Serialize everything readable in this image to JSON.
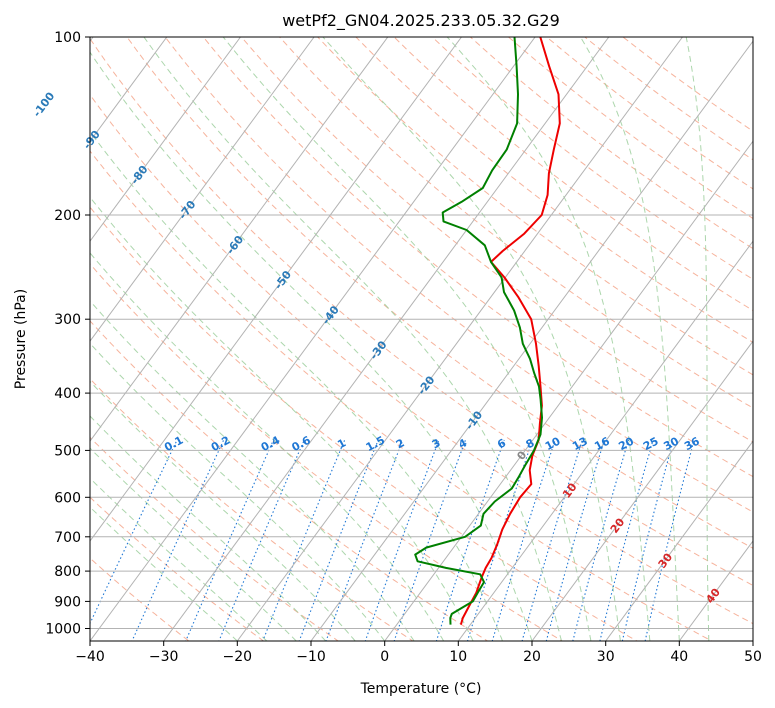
{
  "chart_data": {
    "type": "line",
    "subtype": "skew-t log-p sounding",
    "title": "wetPf2_GN04.2025.233.05.32.G29",
    "xlabel": "Temperature (°C)",
    "ylabel": "Pressure (hPa)",
    "xlim": [
      -40,
      50
    ],
    "ylim": [
      1050,
      100
    ],
    "y_scale": "log",
    "grid": true,
    "x_ticks": [
      "−40",
      "−30",
      "−20",
      "−10",
      "0",
      "10",
      "20",
      "30",
      "40",
      "50"
    ],
    "y_ticks": [
      "100",
      "200",
      "300",
      "400",
      "500",
      "600",
      "700",
      "800",
      "900",
      "1000"
    ],
    "isotherm_labels": [
      "-100",
      "-90",
      "-80",
      "-70",
      "-60",
      "-50",
      "-40",
      "-30",
      "-20",
      "-10",
      "0",
      "10",
      "20",
      "30",
      "40"
    ],
    "mixing_ratio_labels": [
      "0.1",
      "0.2",
      "0.4",
      "0.6",
      "1",
      "1.5",
      "2",
      "3",
      "4",
      "6",
      "8",
      "10",
      "13",
      "16",
      "20",
      "25",
      "30",
      "36"
    ],
    "colors": {
      "temperature": "#ee0000",
      "dewpoint": "#008000",
      "isotherm": "#b3b3b3",
      "dry_adiabat": "#f5a68b",
      "moist_adiabat": "#9ecf9e",
      "mixing_ratio": "#1f77d4",
      "isotherm_label": "#2a7ab8",
      "warm_isotherm_label": "#d62728"
    },
    "series": [
      {
        "name": "",
        "role": "temperature",
        "points": [
          {
            "p": 985,
            "t": 8.7
          },
          {
            "p": 960,
            "t": 8.3
          },
          {
            "p": 920,
            "t": 8.0
          },
          {
            "p": 870,
            "t": 7.6
          },
          {
            "p": 820,
            "t": 6.8
          },
          {
            "p": 790,
            "t": 6.4
          },
          {
            "p": 760,
            "t": 6.2
          },
          {
            "p": 720,
            "t": 5.6
          },
          {
            "p": 680,
            "t": 4.8
          },
          {
            "p": 640,
            "t": 4.3
          },
          {
            "p": 600,
            "t": 4.0
          },
          {
            "p": 570,
            "t": 4.2
          },
          {
            "p": 540,
            "t": 2.6
          },
          {
            "p": 510,
            "t": 1.5
          },
          {
            "p": 480,
            "t": 0.8
          },
          {
            "p": 450,
            "t": -0.7
          },
          {
            "p": 420,
            "t": -2.2
          },
          {
            "p": 390,
            "t": -4.3
          },
          {
            "p": 360,
            "t": -6.6
          },
          {
            "p": 330,
            "t": -9.2
          },
          {
            "p": 300,
            "t": -12.3
          },
          {
            "p": 275,
            "t": -16.3
          },
          {
            "p": 255,
            "t": -20.1
          },
          {
            "p": 240,
            "t": -23.5
          },
          {
            "p": 230,
            "t": -23.0
          },
          {
            "p": 215,
            "t": -21.8
          },
          {
            "p": 200,
            "t": -21.3
          },
          {
            "p": 185,
            "t": -22.5
          },
          {
            "p": 170,
            "t": -24.5
          },
          {
            "p": 155,
            "t": -26.2
          },
          {
            "p": 140,
            "t": -28.0
          },
          {
            "p": 125,
            "t": -31.1
          },
          {
            "p": 112,
            "t": -35.2
          },
          {
            "p": 100,
            "t": -39.3
          }
        ]
      },
      {
        "name": "",
        "role": "dewpoint",
        "points": [
          {
            "p": 985,
            "t": 7.3
          },
          {
            "p": 960,
            "t": 6.6
          },
          {
            "p": 945,
            "t": 6.4
          },
          {
            "p": 925,
            "t": 7.1
          },
          {
            "p": 900,
            "t": 8.0
          },
          {
            "p": 870,
            "t": 7.8
          },
          {
            "p": 835,
            "t": 7.6
          },
          {
            "p": 810,
            "t": 6.3
          },
          {
            "p": 790,
            "t": 1.0
          },
          {
            "p": 770,
            "t": -3.5
          },
          {
            "p": 750,
            "t": -4.5
          },
          {
            "p": 730,
            "t": -3.7
          },
          {
            "p": 700,
            "t": 0.5
          },
          {
            "p": 670,
            "t": 1.5
          },
          {
            "p": 640,
            "t": 0.7
          },
          {
            "p": 610,
            "t": 1.0
          },
          {
            "p": 580,
            "t": 2.0
          },
          {
            "p": 555,
            "t": 1.8
          },
          {
            "p": 530,
            "t": 1.5
          },
          {
            "p": 500,
            "t": 1.2
          },
          {
            "p": 470,
            "t": 0.5
          },
          {
            "p": 440,
            "t": -1.0
          },
          {
            "p": 410,
            "t": -3.0
          },
          {
            "p": 390,
            "t": -4.5
          },
          {
            "p": 370,
            "t": -6.5
          },
          {
            "p": 350,
            "t": -8.5
          },
          {
            "p": 330,
            "t": -11.0
          },
          {
            "p": 310,
            "t": -13.0
          },
          {
            "p": 290,
            "t": -15.5
          },
          {
            "p": 270,
            "t": -18.7
          },
          {
            "p": 255,
            "t": -20.5
          },
          {
            "p": 240,
            "t": -23.5
          },
          {
            "p": 225,
            "t": -26.0
          },
          {
            "p": 212,
            "t": -30.0
          },
          {
            "p": 205,
            "t": -34.0
          },
          {
            "p": 198,
            "t": -35.0
          },
          {
            "p": 190,
            "t": -33.5
          },
          {
            "p": 180,
            "t": -32.0
          },
          {
            "p": 168,
            "t": -32.5
          },
          {
            "p": 155,
            "t": -32.6
          },
          {
            "p": 140,
            "t": -33.8
          },
          {
            "p": 125,
            "t": -36.6
          },
          {
            "p": 112,
            "t": -39.6
          },
          {
            "p": 100,
            "t": -42.8
          }
        ]
      }
    ]
  }
}
